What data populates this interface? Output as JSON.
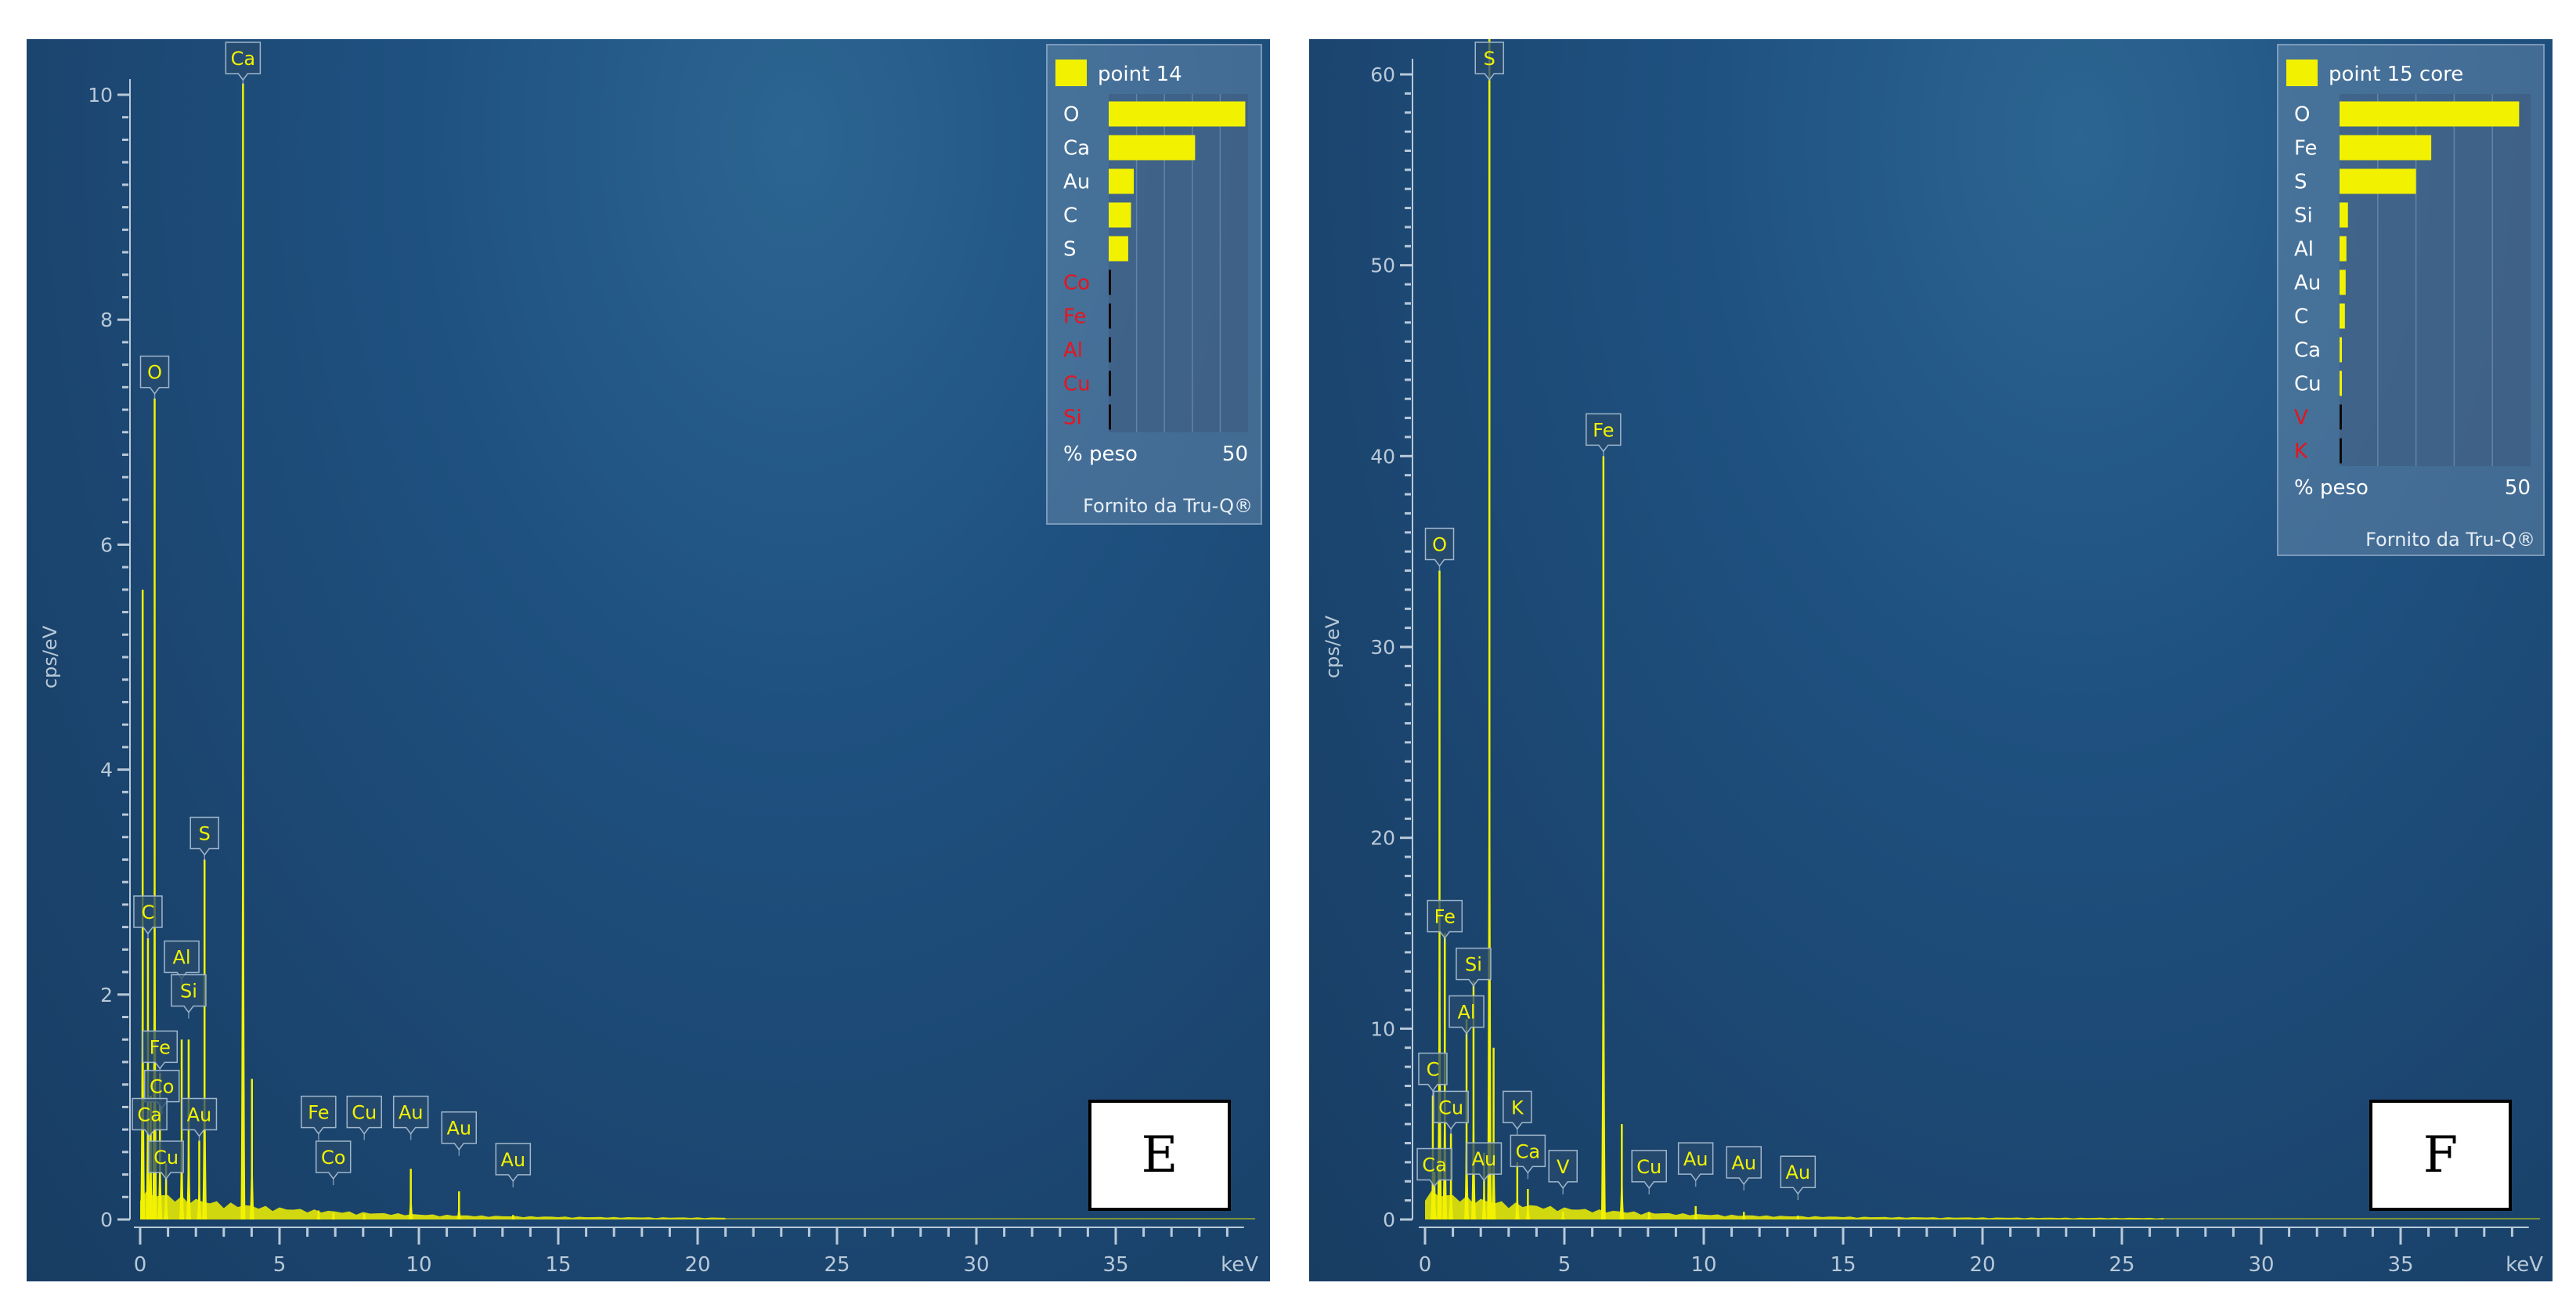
{
  "chart_data": [
    {
      "type": "line",
      "panel_label": "E",
      "xlabel": "keV",
      "ylabel": "cps/eV",
      "xlim": [
        0,
        40
      ],
      "ylim": [
        0,
        10
      ],
      "x_ticks": [
        "0",
        "5",
        "10",
        "15",
        "20",
        "25",
        "30",
        "35"
      ],
      "y_ticks": [
        "0",
        "2",
        "4",
        "6",
        "8",
        "10"
      ],
      "series": [
        {
          "color": "#f2f200",
          "peaks": [
            {
              "x": 0.09,
              "y": 5.6
            },
            {
              "x": 0.28,
              "y": 2.5
            },
            {
              "x": 0.38,
              "y": 1.1
            },
            {
              "x": 0.52,
              "y": 7.3
            },
            {
              "x": 0.71,
              "y": 1.3
            },
            {
              "x": 0.93,
              "y": 0.5
            },
            {
              "x": 1.49,
              "y": 1.6
            },
            {
              "x": 1.74,
              "y": 1.6
            },
            {
              "x": 2.12,
              "y": 0.7
            },
            {
              "x": 2.31,
              "y": 3.2
            },
            {
              "x": 3.69,
              "y": 10.1
            },
            {
              "x": 4.01,
              "y": 1.25
            },
            {
              "x": 6.4,
              "y": 0.08
            },
            {
              "x": 6.93,
              "y": 0.06
            },
            {
              "x": 8.04,
              "y": 0.05
            },
            {
              "x": 9.71,
              "y": 0.45
            },
            {
              "x": 11.44,
              "y": 0.25
            },
            {
              "x": 13.38,
              "y": 0.04
            }
          ],
          "continuum_end": 21.0
        }
      ],
      "peak_labels": [
        {
          "text": "Ca",
          "x": 3.69,
          "y": 10.1
        },
        {
          "text": "O",
          "x": 0.52,
          "y": 7.3
        },
        {
          "text": "S",
          "x": 2.31,
          "y": 3.2
        },
        {
          "text": "C",
          "x": 0.28,
          "y": 2.5
        },
        {
          "text": "Al",
          "x": 1.49,
          "y": 2.1
        },
        {
          "text": "Si",
          "x": 1.74,
          "y": 1.8
        },
        {
          "text": "Fe",
          "x": 0.71,
          "y": 1.3
        },
        {
          "text": "Co",
          "x": 0.78,
          "y": 0.95
        },
        {
          "text": "Ca",
          "x": 0.34,
          "y": 0.7
        },
        {
          "text": "Au",
          "x": 2.12,
          "y": 0.7
        },
        {
          "text": "Cu",
          "x": 0.93,
          "y": 0.32
        },
        {
          "text": "Fe",
          "x": 6.4,
          "y": 0.72
        },
        {
          "text": "Co",
          "x": 6.93,
          "y": 0.32
        },
        {
          "text": "Cu",
          "x": 8.04,
          "y": 0.72
        },
        {
          "text": "Au",
          "x": 9.71,
          "y": 0.72
        },
        {
          "text": "Au",
          "x": 11.44,
          "y": 0.58
        },
        {
          "text": "Au",
          "x": 13.38,
          "y": 0.3
        }
      ],
      "legend": {
        "title": "point 14",
        "position": "top-right",
        "scale_label": "% peso",
        "scale_max_label": "50",
        "footer": "Fornito da Tru-Q®",
        "entries": [
          {
            "element": "O",
            "value": 49,
            "flag": false
          },
          {
            "element": "Ca",
            "value": 31,
            "flag": false
          },
          {
            "element": "Au",
            "value": 9,
            "flag": false
          },
          {
            "element": "C",
            "value": 8,
            "flag": false
          },
          {
            "element": "S",
            "value": 7,
            "flag": false
          },
          {
            "element": "Co",
            "value": 0,
            "flag": true
          },
          {
            "element": "Fe",
            "value": 0,
            "flag": true
          },
          {
            "element": "Al",
            "value": 0,
            "flag": true
          },
          {
            "element": "Cu",
            "value": 0,
            "flag": true
          },
          {
            "element": "Si",
            "value": 0,
            "flag": true
          }
        ]
      }
    },
    {
      "type": "line",
      "panel_label": "F",
      "xlabel": "keV",
      "ylabel": "cps/eV",
      "xlim": [
        0,
        40
      ],
      "ylim": [
        0,
        60
      ],
      "x_ticks": [
        "0",
        "5",
        "10",
        "15",
        "20",
        "25",
        "30",
        "35"
      ],
      "y_ticks": [
        "0",
        "10",
        "20",
        "30",
        "40",
        "50",
        "60"
      ],
      "series": [
        {
          "color": "#f2f200",
          "peaks": [
            {
              "x": 0.28,
              "y": 6.5
            },
            {
              "x": 0.34,
              "y": 2.5
            },
            {
              "x": 0.52,
              "y": 34.0
            },
            {
              "x": 0.71,
              "y": 15.0
            },
            {
              "x": 0.93,
              "y": 4.5
            },
            {
              "x": 1.49,
              "y": 10.5
            },
            {
              "x": 1.74,
              "y": 12.5
            },
            {
              "x": 2.12,
              "y": 3.5
            },
            {
              "x": 2.31,
              "y": 62.0
            },
            {
              "x": 2.46,
              "y": 9.0
            },
            {
              "x": 3.31,
              "y": 3.0
            },
            {
              "x": 3.69,
              "y": 1.6
            },
            {
              "x": 4.95,
              "y": 0.4
            },
            {
              "x": 6.4,
              "y": 40.0
            },
            {
              "x": 7.06,
              "y": 5.0
            },
            {
              "x": 8.04,
              "y": 0.4
            },
            {
              "x": 9.71,
              "y": 0.7
            },
            {
              "x": 11.44,
              "y": 0.4
            },
            {
              "x": 13.38,
              "y": 0.2
            }
          ],
          "continuum_end": 26.5
        }
      ],
      "peak_labels": [
        {
          "text": "S",
          "x": 2.31,
          "y": 61.0
        },
        {
          "text": "Fe",
          "x": 6.4,
          "y": 40.0
        },
        {
          "text": "O",
          "x": 0.52,
          "y": 34.0
        },
        {
          "text": "Fe",
          "x": 0.71,
          "y": 14.5
        },
        {
          "text": "Si",
          "x": 1.74,
          "y": 12.0
        },
        {
          "text": "Al",
          "x": 1.49,
          "y": 9.5
        },
        {
          "text": "C",
          "x": 0.28,
          "y": 6.5
        },
        {
          "text": "K",
          "x": 3.31,
          "y": 4.5
        },
        {
          "text": "Cu",
          "x": 0.93,
          "y": 4.5
        },
        {
          "text": "Ca",
          "x": 3.69,
          "y": 2.2
        },
        {
          "text": "Au",
          "x": 2.12,
          "y": 1.8
        },
        {
          "text": "Ca",
          "x": 0.34,
          "y": 1.5
        },
        {
          "text": "V",
          "x": 4.95,
          "y": 1.4
        },
        {
          "text": "Cu",
          "x": 8.04,
          "y": 1.4
        },
        {
          "text": "Au",
          "x": 9.71,
          "y": 1.8
        },
        {
          "text": "Au",
          "x": 11.44,
          "y": 1.6
        },
        {
          "text": "Au",
          "x": 13.38,
          "y": 1.1
        }
      ],
      "legend": {
        "title": "point 15 core",
        "position": "top-right",
        "scale_label": "% peso",
        "scale_max_label": "50",
        "footer": "Fornito da Tru-Q®",
        "entries": [
          {
            "element": "O",
            "value": 47,
            "flag": false
          },
          {
            "element": "Fe",
            "value": 24,
            "flag": false
          },
          {
            "element": "S",
            "value": 20,
            "flag": false
          },
          {
            "element": "Si",
            "value": 2.2,
            "flag": false
          },
          {
            "element": "Al",
            "value": 1.8,
            "flag": false
          },
          {
            "element": "Au",
            "value": 1.6,
            "flag": false
          },
          {
            "element": "C",
            "value": 1.4,
            "flag": false
          },
          {
            "element": "Ca",
            "value": 0.5,
            "flag": false
          },
          {
            "element": "Cu",
            "value": 0.4,
            "flag": false
          },
          {
            "element": "V",
            "value": 0,
            "flag": true
          },
          {
            "element": "K",
            "value": 0,
            "flag": true
          }
        ]
      }
    }
  ]
}
